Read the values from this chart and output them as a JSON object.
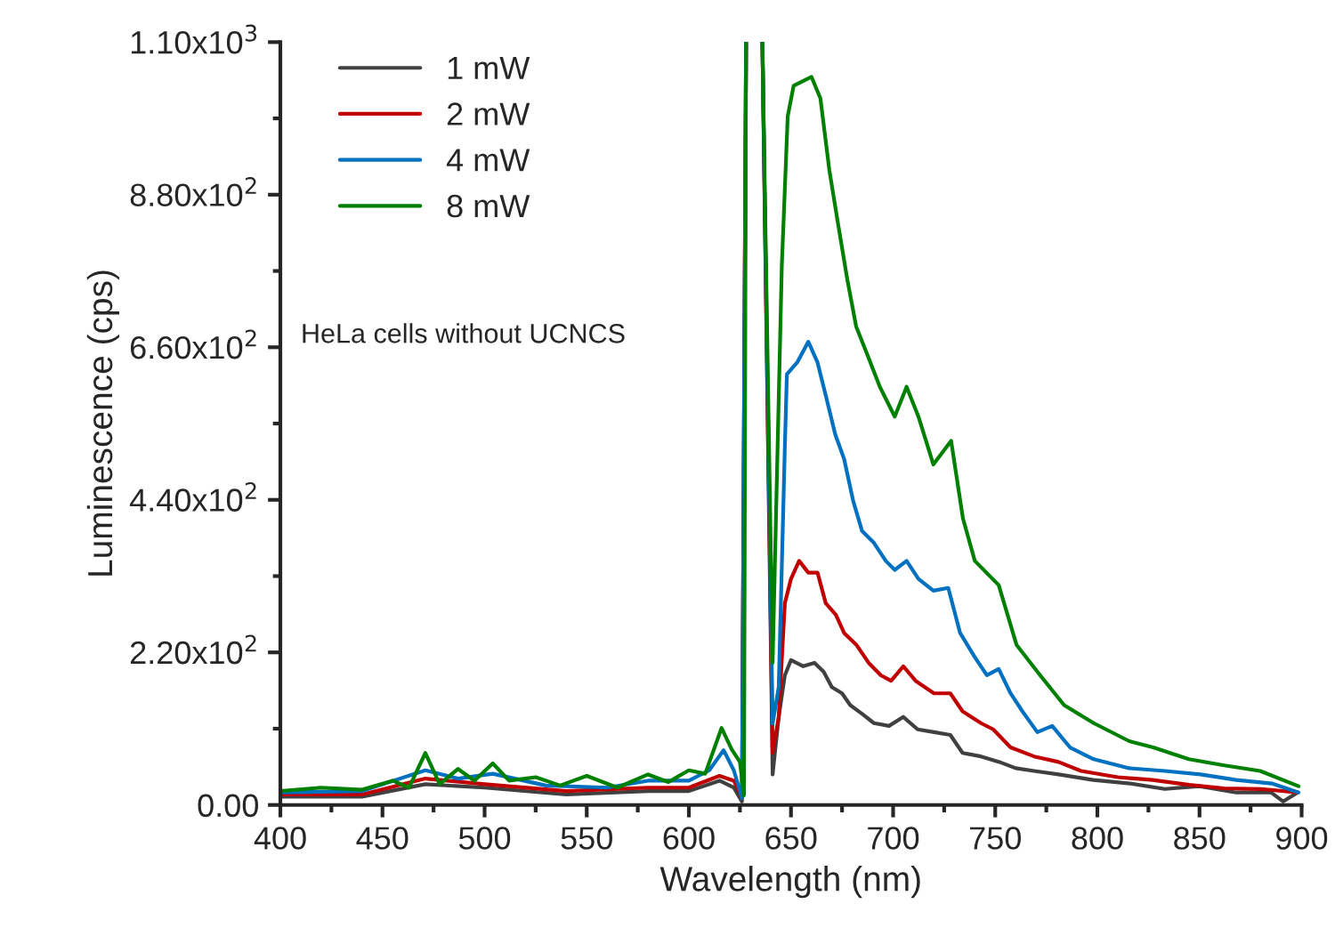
{
  "chart_data": {
    "type": "line",
    "xlabel": "Wavelength (nm)",
    "ylabel": "Luminescence (cps)",
    "annotations": [
      "HeLa cells without UCNCS"
    ],
    "xlim": [
      400,
      900
    ],
    "ylim": [
      0,
      1100
    ],
    "xticks": [
      400,
      {
        "value": 425,
        "label": null
      },
      450,
      {
        "value": 475,
        "label": null
      },
      500,
      {
        "value": 525,
        "label": null
      },
      550,
      {
        "value": 575,
        "label": null
      },
      600,
      {
        "value": 625,
        "label": null
      },
      650,
      {
        "value": 675,
        "label": null
      },
      700,
      {
        "value": 725,
        "label": null
      },
      750,
      {
        "value": 775,
        "label": null
      },
      800,
      {
        "value": 825,
        "label": null
      },
      850,
      {
        "value": 875,
        "label": null
      },
      900
    ],
    "yticks": [
      {
        "value": 0,
        "label": "0.00"
      },
      {
        "value": 110,
        "label": null
      },
      {
        "value": 220,
        "label": "2.20x10$^{2}$"
      },
      {
        "value": 330,
        "label": null
      },
      {
        "value": 440,
        "label": "4.40x10$^{2}$"
      },
      {
        "value": 550,
        "label": null
      },
      {
        "value": 660,
        "label": "6.60x10$^{2}$"
      },
      {
        "value": 770,
        "label": null
      },
      {
        "value": 880,
        "label": "8.80x10$^{2}$"
      },
      {
        "value": 990,
        "label": null
      },
      {
        "value": 1100,
        "label": "1.10x10$^{3}$"
      }
    ],
    "grid": false,
    "legend": "top left",
    "marker": "none",
    "line_style": "solid",
    "series": [
      {
        "name": "1 mW",
        "color": "#404040",
        "x": [
          400,
          440,
          471,
          500,
          540,
          580,
          600,
          615,
          622,
          626,
          628,
          632,
          636,
          641,
          644,
          647,
          650,
          656,
          661.5,
          666,
          670,
          675,
          679,
          685,
          690.6,
          698,
          705,
          712,
          720,
          728,
          734,
          743,
          752,
          760,
          769,
          781,
          798,
          816,
          833,
          850,
          868,
          885,
          891,
          898
        ],
        "values": [
          12,
          12,
          30,
          25,
          15,
          20,
          20,
          35,
          25,
          5,
          1100,
          null,
          1100,
          44,
          127,
          187,
          209,
          200,
          205,
          192,
          170,
          161,
          144,
          131,
          118,
          114,
          127,
          109,
          105,
          101,
          75,
          70,
          62,
          53,
          49,
          44,
          36,
          31,
          23,
          27,
          18,
          18,
          5,
          18
        ]
      },
      {
        "name": "2 mW",
        "color": "#c00000",
        "x": [
          400,
          440,
          471,
          500,
          540,
          580,
          600,
          615,
          622,
          626,
          628,
          632,
          636,
          641,
          644,
          647,
          650,
          654,
          658.5,
          663,
          667,
          672,
          676,
          682,
          688,
          694,
          699,
          705,
          711,
          720,
          728,
          734,
          743,
          749,
          757.5,
          769,
          781,
          792,
          810,
          827,
          845,
          862,
          880,
          898
        ],
        "values": [
          15,
          15,
          38,
          30,
          20,
          25,
          25,
          42,
          35,
          10,
          1100,
          null,
          1100,
          75,
          127,
          291,
          326,
          352,
          335,
          335,
          291,
          274,
          248,
          231,
          205,
          187,
          179,
          200,
          179,
          161,
          161,
          135,
          118,
          109,
          83,
          70,
          62,
          49,
          40,
          36,
          29,
          24,
          23,
          18
        ]
      },
      {
        "name": "4 mW",
        "color": "#0070c0",
        "x": [
          400,
          440,
          471,
          487,
          504,
          530,
          560,
          580,
          600,
          610,
          617,
          622,
          626,
          628,
          632,
          636,
          641,
          644,
          647,
          648,
          653,
          658.5,
          663,
          667.4,
          671.7,
          676,
          680.4,
          684.8,
          690.6,
          696.4,
          700.8,
          706.6,
          712.4,
          719.7,
          727,
          732.8,
          740,
          745.9,
          751.7,
          757.5,
          763.3,
          770.6,
          777.9,
          786.6,
          798.2,
          815.6,
          833,
          850.5,
          868,
          885.4,
          898.5
        ],
        "values": [
          18,
          20,
          50,
          38,
          45,
          28,
          25,
          35,
          35,
          50,
          79,
          50,
          10,
          1100,
          null,
          1100,
          117,
          170,
          517,
          621,
          638,
          668,
          638,
          586,
          534,
          499,
          439,
          395,
          378,
          352,
          339,
          352,
          326,
          309,
          313,
          248,
          213,
          187,
          196,
          161,
          135,
          105,
          114,
          83,
          66,
          53,
          49,
          44,
          36,
          31,
          18
        ]
      },
      {
        "name": "8 mW",
        "color": "#008000",
        "x": [
          400,
          420,
          440,
          455,
          463,
          471,
          478,
          487,
          495,
          504,
          512,
          525,
          537,
          550,
          565,
          580,
          590,
          600,
          608,
          616,
          621,
          625,
          627,
          628,
          632,
          636,
          641,
          645.5,
          648.4,
          651.3,
          660,
          664.4,
          668.8,
          673.1,
          677.5,
          681.9,
          687.7,
          693.5,
          700.8,
          706.6,
          712.4,
          719.7,
          728.4,
          734.2,
          740,
          751.7,
          760.4,
          772,
          783.7,
          798.2,
          815.6,
          827.3,
          844.8,
          862.2,
          879.7,
          898.5
        ],
        "values": [
          20,
          25,
          22,
          35,
          25,
          75,
          30,
          52,
          35,
          60,
          35,
          40,
          28,
          42,
          25,
          44,
          33,
          50,
          45,
          111,
          80,
          62,
          14,
          1100,
          null,
          1100,
          205,
          777,
          993,
          1037,
          1050,
          1019,
          915,
          837,
          759,
          690,
          647,
          603,
          560,
          603,
          560,
          491,
          525,
          413,
          352,
          317,
          231,
          187,
          144,
          118,
          92,
          83,
          66,
          57,
          49,
          27
        ]
      }
    ]
  }
}
